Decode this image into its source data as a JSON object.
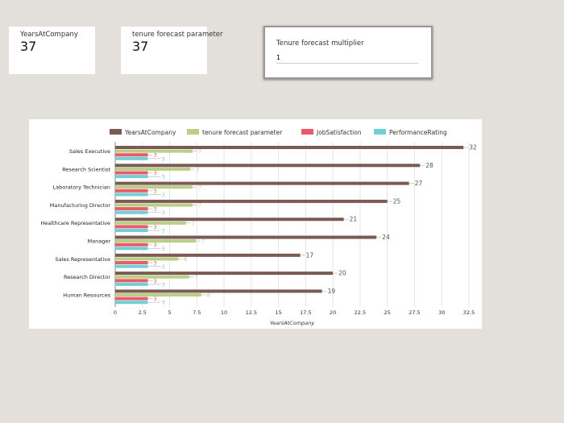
{
  "cards": [
    {
      "label": "YearsAtCompany",
      "value": "37"
    },
    {
      "label": "tenure forecast parameter",
      "value": "37"
    }
  ],
  "parameter": {
    "label": "Tenure forecast multiplier",
    "value": "1"
  },
  "chart_data": {
    "type": "bar",
    "orientation": "horizontal",
    "categories": [
      "Sales Executive",
      "Research Scientist",
      "Laboratory Technician",
      "Manufacturing Director",
      "Healthcare Representative",
      "Manager",
      "Sales Representative",
      "Research Director",
      "Human Resources"
    ],
    "series": [
      {
        "name": "YearsAtCompany",
        "color": "#7a5a52",
        "values": [
          32,
          28,
          27,
          25,
          21,
          24,
          17,
          20,
          19
        ],
        "labels": [
          "32",
          "28",
          "27",
          "25",
          "21",
          "24",
          "17",
          "20",
          "19"
        ]
      },
      {
        "name": "tenure forecast parameter",
        "color": "#b9cf86",
        "values": [
          7.1,
          6.9,
          7.1,
          7.1,
          6.5,
          7.4,
          5.8,
          6.8,
          7.9
        ],
        "labels": [
          "7",
          "7",
          "7",
          "7",
          "7",
          "7",
          "6",
          "7",
          "8"
        ]
      },
      {
        "name": "JobSatisfaction",
        "color": "#ec5a6a",
        "values": [
          3,
          3,
          3,
          3,
          3,
          3,
          3,
          3,
          3
        ],
        "labels": [
          "3",
          "3",
          "3",
          "3",
          "3",
          "3",
          "3",
          "3",
          "3"
        ]
      },
      {
        "name": "PerformanceRating",
        "color": "#6fd0d6",
        "values": [
          3,
          3,
          3,
          3,
          3,
          3,
          3,
          3,
          3
        ],
        "labels": [
          "3",
          "3",
          "3",
          "3",
          "3",
          "3",
          "3",
          "3",
          "3"
        ]
      }
    ],
    "xlabel": "YearsAtCompany",
    "xlim": [
      0,
      32.5
    ],
    "xticks": [
      "0",
      "2.5",
      "5",
      "7.5",
      "10",
      "12.5",
      "15",
      "17.5",
      "20",
      "22.5",
      "25",
      "27.5",
      "30",
      "32.5"
    ],
    "grid": true,
    "legend": "top"
  }
}
